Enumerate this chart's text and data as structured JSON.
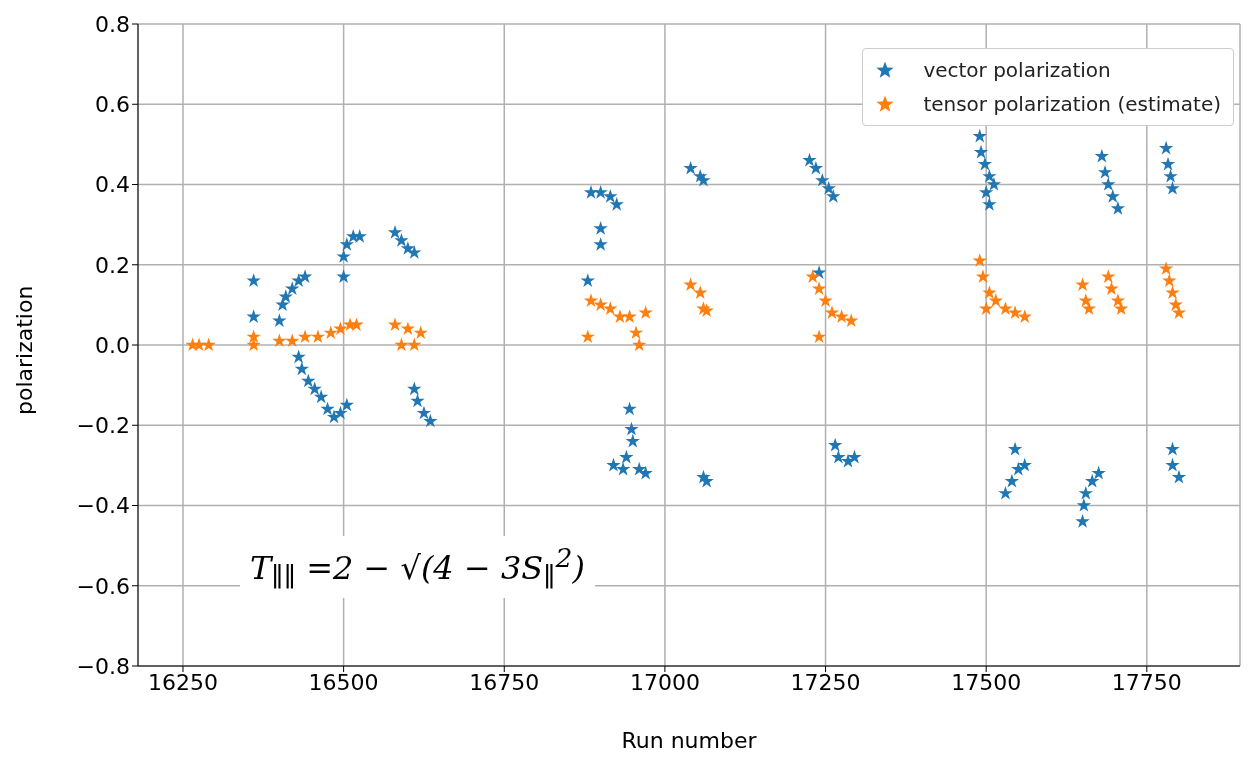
{
  "chart_data": {
    "type": "scatter",
    "xlabel": "Run number",
    "ylabel": "polarization",
    "xlim": [
      16180,
      17895
    ],
    "ylim": [
      -0.8,
      0.8
    ],
    "xticks": [
      16250,
      16500,
      16750,
      17000,
      17250,
      17500,
      17750
    ],
    "yticks": [
      -0.8,
      -0.6,
      -0.4,
      -0.2,
      {
        "value": 0,
        "label": "0.0"
      },
      0.2,
      0.4,
      0.6,
      0.8
    ],
    "grid": true,
    "legend": "top right",
    "marker": "star",
    "annotations": [
      "T$_{∥∥}$ =2 − √(4 − 3S$_{∥}$$^{2}$)"
    ],
    "series": [
      {
        "name": "vector polarization",
        "color": "#1f77b4",
        "x": [
          16360,
          16360,
          16400,
          16405,
          16410,
          16420,
          16430,
          16440,
          16430,
          16435,
          16445,
          16455,
          16465,
          16475,
          16485,
          16495,
          16505,
          16500,
          16500,
          16505,
          16515,
          16525,
          16580,
          16590,
          16600,
          16610,
          16610,
          16615,
          16625,
          16635,
          16885,
          16900,
          16915,
          16925,
          16900,
          16900,
          16880,
          16945,
          16948,
          16950,
          16940,
          16920,
          16935,
          16960,
          16970,
          17040,
          17055,
          17060,
          17060,
          17065,
          17225,
          17235,
          17245,
          17255,
          17262,
          17240,
          17265,
          17270,
          17285,
          17295,
          17490,
          17492,
          17498,
          17505,
          17512,
          17500,
          17505,
          17530,
          17540,
          17550,
          17560,
          17545,
          17680,
          17685,
          17690,
          17697,
          17705,
          17650,
          17652,
          17655,
          17665,
          17675,
          17780,
          17783,
          17787,
          17790,
          17790,
          17790,
          17800
        ],
        "values": [
          0.16,
          0.07,
          0.06,
          0.1,
          0.12,
          0.14,
          0.16,
          0.17,
          -0.03,
          -0.06,
          -0.09,
          -0.11,
          -0.13,
          -0.16,
          -0.18,
          -0.17,
          -0.15,
          0.17,
          0.22,
          0.25,
          0.27,
          0.27,
          0.28,
          0.26,
          0.24,
          0.23,
          -0.11,
          -0.14,
          -0.17,
          -0.19,
          0.38,
          0.38,
          0.37,
          0.35,
          0.29,
          0.25,
          0.16,
          -0.16,
          -0.21,
          -0.24,
          -0.28,
          -0.3,
          -0.31,
          -0.31,
          -0.32,
          0.44,
          0.42,
          0.41,
          -0.33,
          -0.34,
          0.46,
          0.44,
          0.41,
          0.39,
          0.37,
          0.18,
          -0.25,
          -0.28,
          -0.29,
          -0.28,
          0.52,
          0.48,
          0.45,
          0.42,
          0.4,
          0.38,
          0.35,
          -0.37,
          -0.34,
          -0.31,
          -0.3,
          -0.26,
          0.47,
          0.43,
          0.4,
          0.37,
          0.34,
          -0.44,
          -0.4,
          -0.37,
          -0.34,
          -0.32,
          0.49,
          0.45,
          0.42,
          0.39,
          -0.26,
          -0.3,
          -0.33
        ]
      },
      {
        "name": "tensor polarization (estimate)",
        "color": "#ff7f0e",
        "x": [
          16265,
          16275,
          16290,
          16360,
          16360,
          16400,
          16420,
          16440,
          16460,
          16480,
          16495,
          16510,
          16520,
          16580,
          16600,
          16620,
          16590,
          16610,
          16880,
          16885,
          16900,
          16915,
          16930,
          16945,
          16955,
          16960,
          16970,
          17040,
          17055,
          17060,
          17065,
          17230,
          17240,
          17250,
          17260,
          17275,
          17290,
          17240,
          17490,
          17495,
          17505,
          17515,
          17530,
          17545,
          17560,
          17500,
          17650,
          17655,
          17660,
          17690,
          17695,
          17705,
          17710,
          17780,
          17785,
          17790,
          17795,
          17800
        ],
        "values": [
          0,
          0,
          0,
          0.02,
          0,
          0.01,
          0.01,
          0.02,
          0.02,
          0.03,
          0.04,
          0.05,
          0.05,
          0.05,
          0.04,
          0.03,
          0,
          0,
          0.02,
          0.11,
          0.1,
          0.09,
          0.07,
          0.07,
          0.03,
          0,
          0.08,
          0.15,
          0.13,
          0.09,
          0.085,
          0.17,
          0.14,
          0.11,
          0.08,
          0.07,
          0.06,
          0.02,
          0.21,
          0.17,
          0.13,
          0.11,
          0.09,
          0.08,
          0.07,
          0.09,
          0.15,
          0.11,
          0.09,
          0.17,
          0.14,
          0.11,
          0.09,
          0.19,
          0.16,
          0.13,
          0.1,
          0.08
        ]
      }
    ]
  }
}
